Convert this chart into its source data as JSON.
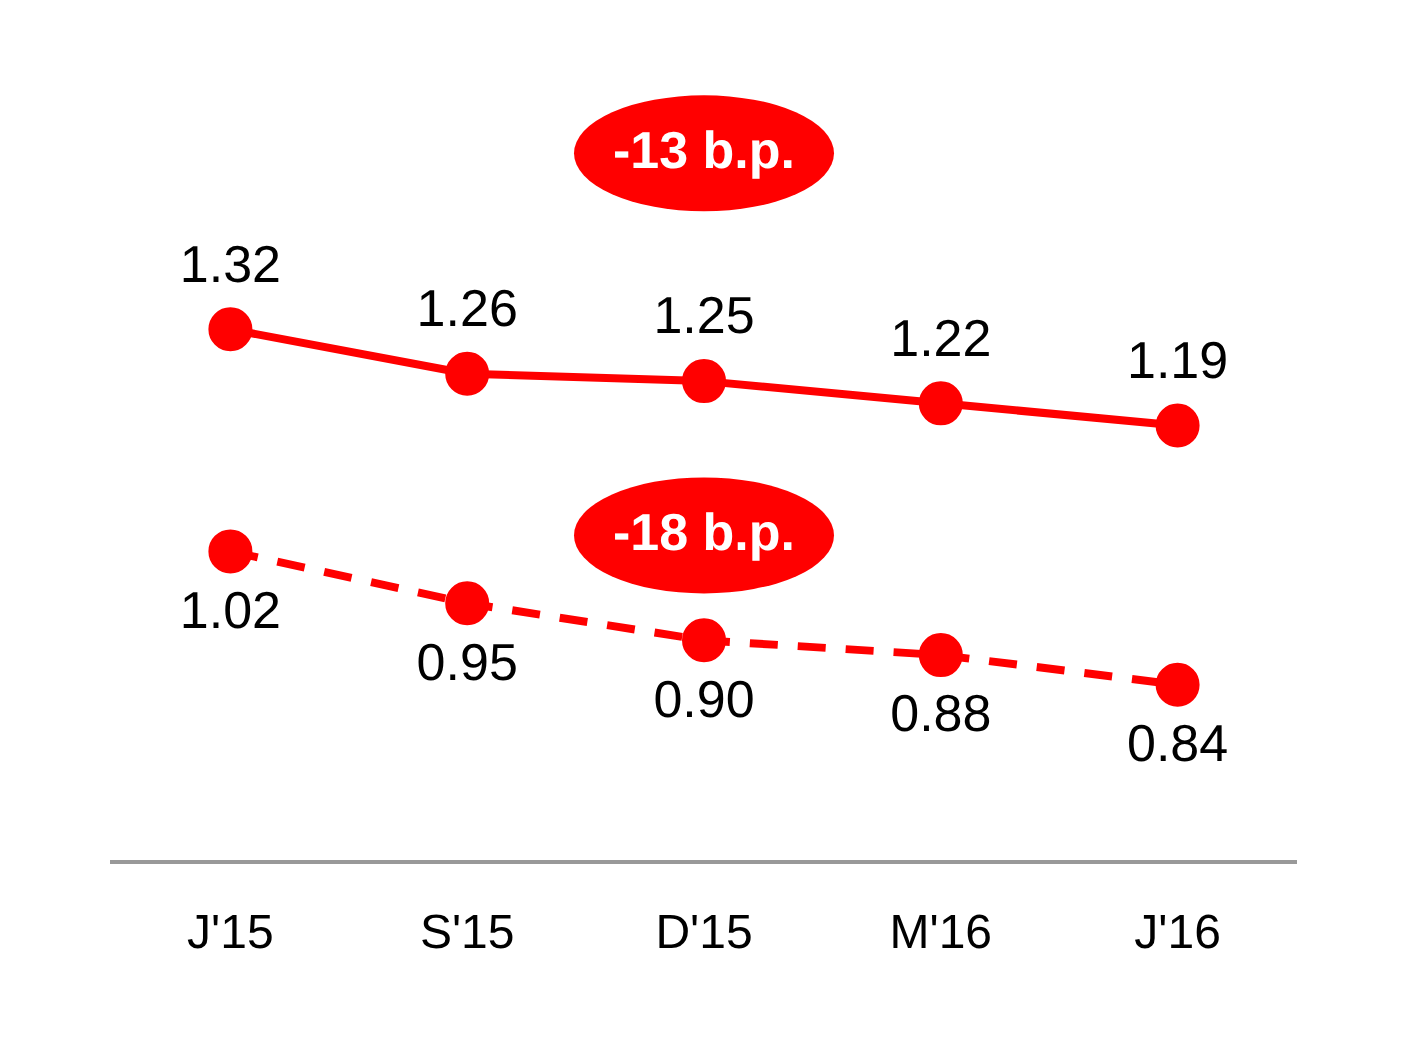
{
  "chart_data": {
    "type": "line",
    "categories": [
      "J'15",
      "S'15",
      "D'15",
      "M'16",
      "J'16"
    ],
    "series": [
      {
        "color": "#ff0000",
        "values": [
          1.32,
          1.26,
          1.25,
          1.22,
          1.19
        ],
        "value_labels": [
          "1.32",
          "1.26",
          "1.25",
          "1.22",
          "1.19"
        ],
        "line_style": "solid"
      },
      {
        "color": "#ff0000",
        "values": [
          1.02,
          0.95,
          0.9,
          0.88,
          0.84
        ],
        "value_labels": [
          "1.02",
          "0.95",
          "0.90",
          "0.88",
          "0.84"
        ],
        "line_style": "dashed"
      }
    ],
    "annotations": [
      "-13 b.p.",
      "-18 b.p."
    ],
    "marker": "circle",
    "grid": false,
    "legend": false
  }
}
